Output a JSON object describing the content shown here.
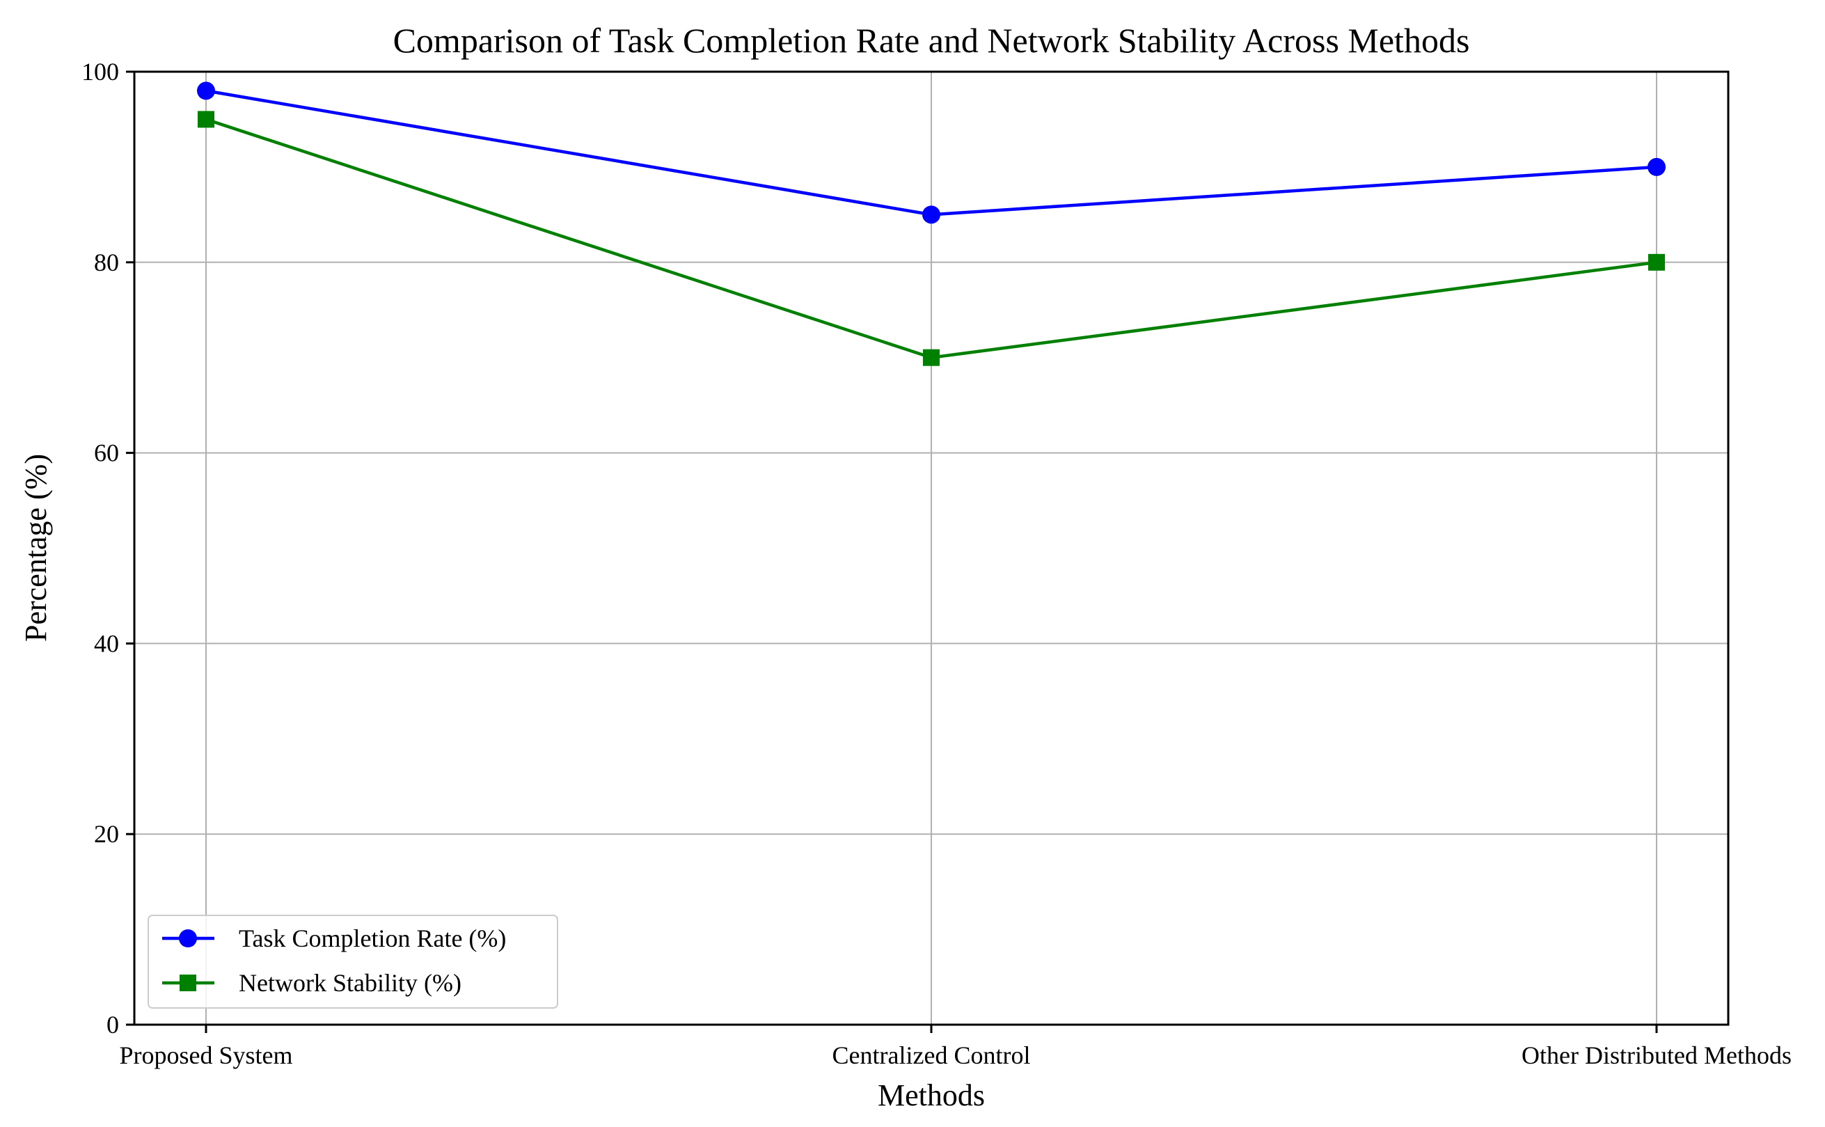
{
  "chart_data": {
    "type": "line",
    "title": "Comparison of Task Completion Rate and Network Stability Across Methods",
    "xlabel": "Methods",
    "ylabel": "Percentage (%)",
    "categories": [
      "Proposed System",
      "Centralized Control",
      "Other Distributed Methods"
    ],
    "ylim": [
      0,
      100
    ],
    "yticks": [
      0,
      20,
      40,
      60,
      80,
      100
    ],
    "grid": true,
    "legend_position": "lower-left",
    "series": [
      {
        "name": "Task Completion Rate (%)",
        "values": [
          98,
          85,
          90
        ],
        "color": "#0000ff",
        "marker": "circle"
      },
      {
        "name": "Network Stability (%)",
        "values": [
          95,
          70,
          80
        ],
        "color": "#008000",
        "marker": "square"
      }
    ]
  }
}
